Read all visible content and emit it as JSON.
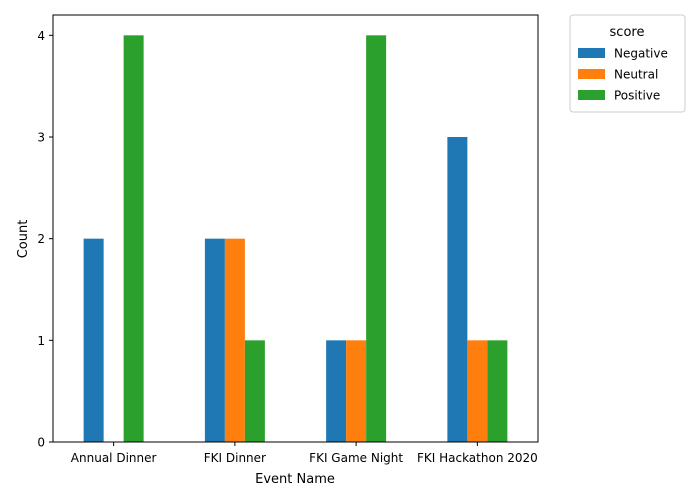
{
  "chart_data": {
    "type": "bar",
    "title": "",
    "xlabel": "Event Name",
    "ylabel": "Count",
    "categories": [
      "Annual Dinner",
      "FKI Dinner",
      "FKI Game Night",
      "FKI Hackathon 2020"
    ],
    "series": [
      {
        "name": "Negative",
        "color": "#1f77b4",
        "values": [
          2,
          2,
          1,
          3
        ]
      },
      {
        "name": "Neutral",
        "color": "#ff7f0e",
        "values": [
          0,
          2,
          1,
          1
        ]
      },
      {
        "name": "Positive",
        "color": "#2ca02c",
        "values": [
          4,
          1,
          4,
          1
        ]
      }
    ],
    "ylim": [
      0,
      4.2
    ],
    "yticks": [
      "0",
      "1",
      "2",
      "3",
      "4"
    ],
    "grid": false,
    "legend": {
      "title": "score",
      "placement": "outside-top-right"
    }
  }
}
